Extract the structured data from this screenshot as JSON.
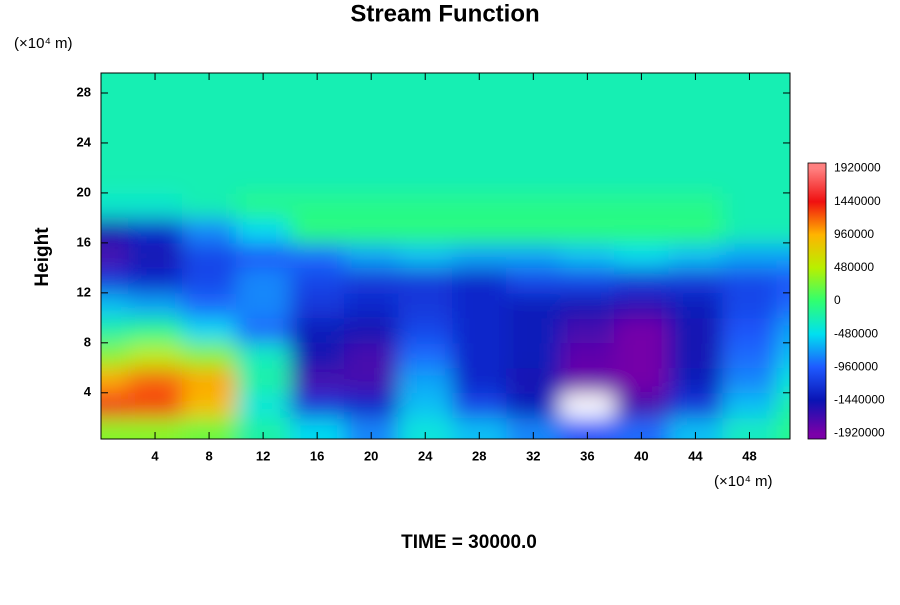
{
  "chart_data": {
    "type": "contour",
    "title": "Stream Function",
    "y_label": "Height",
    "x_unit": "(×10⁴ m)",
    "y_unit": "(×10⁴ m)",
    "footer": "TIME = 30000.0",
    "xlim": [
      0,
      51
    ],
    "ylim": [
      0.3,
      29.6
    ],
    "xticks": [
      4,
      8,
      12,
      16,
      20,
      24,
      28,
      32,
      36,
      40,
      44,
      48
    ],
    "yticks": [
      4,
      8,
      12,
      16,
      20,
      24,
      28
    ],
    "x": [
      0,
      4,
      8,
      12,
      16,
      20,
      24,
      28,
      32,
      36,
      40,
      44,
      48,
      52
    ],
    "y": [
      1,
      3,
      5,
      7,
      9,
      11,
      13,
      15,
      17,
      19,
      21,
      23,
      25,
      27,
      29
    ],
    "z": [
      [
        300000,
        300000,
        200000,
        -200000,
        -500000,
        -800000,
        -400000,
        -600000,
        -800000,
        -1000000,
        -900000,
        -600000,
        -300000,
        -100000
      ],
      [
        1500000,
        1300000,
        900000,
        -400000,
        -1200000,
        -1300000,
        -600000,
        -1100000,
        -1400000,
        -2000000,
        -1700000,
        -1200000,
        -600000,
        -200000
      ],
      [
        1000000,
        1200000,
        1000000,
        -200000,
        -1700000,
        -1700000,
        -700000,
        -1300000,
        -1500000,
        -1850000,
        -1900000,
        -1400000,
        -800000,
        -400000
      ],
      [
        300000,
        500000,
        300000,
        -300000,
        -1500000,
        -1700000,
        -900000,
        -1300000,
        -1400000,
        -1800000,
        -1900000,
        -1500000,
        -900000,
        -600000
      ],
      [
        -200000,
        -100000,
        -500000,
        -900000,
        -1400000,
        -1500000,
        -1100000,
        -1300000,
        -1400000,
        -1700000,
        -1900000,
        -1500000,
        -1000000,
        -700000
      ],
      [
        -600000,
        -700000,
        -900000,
        -800000,
        -1200000,
        -1300000,
        -1200000,
        -1300000,
        -1400000,
        -1500000,
        -1600000,
        -1400000,
        -1100000,
        -900000
      ],
      [
        -1200000,
        -1300000,
        -1100000,
        -800000,
        -1100000,
        -1200000,
        -1200000,
        -1300000,
        -1100000,
        -1100000,
        -1200000,
        -1200000,
        -1100000,
        -1000000
      ],
      [
        -1700000,
        -1500000,
        -1100000,
        -1000000,
        -900000,
        -700000,
        -600000,
        -700000,
        -700000,
        -600000,
        -500000,
        -600000,
        -700000,
        -700000
      ],
      [
        -1500000,
        -1300000,
        -800000,
        -500000,
        -50000,
        -50000,
        -50000,
        -50000,
        -50000,
        -50000,
        -50000,
        -50000,
        -250000,
        -250000
      ],
      [
        -350000,
        -350000,
        -250000,
        -100000,
        -100000,
        -100000,
        -100000,
        -100000,
        -100000,
        -100000,
        -100000,
        -100000,
        -250000,
        -250000
      ],
      [
        -250000,
        -250000,
        -250000,
        -250000,
        -250000,
        -250000,
        -250000,
        -250000,
        -250000,
        -250000,
        -250000,
        -250000,
        -250000,
        -250000
      ],
      [
        -250000,
        -250000,
        -250000,
        -250000,
        -250000,
        -250000,
        -250000,
        -250000,
        -250000,
        -250000,
        -250000,
        -250000,
        -250000,
        -250000
      ],
      [
        -250000,
        -250000,
        -250000,
        -250000,
        -250000,
        -250000,
        -250000,
        -250000,
        -250000,
        -250000,
        -250000,
        -250000,
        -250000,
        -250000
      ],
      [
        -250000,
        -250000,
        -250000,
        -250000,
        -250000,
        -250000,
        -250000,
        -250000,
        -250000,
        -250000,
        -250000,
        -250000,
        -250000,
        -250000
      ],
      [
        -250000,
        -250000,
        -250000,
        -250000,
        -250000,
        -250000,
        -250000,
        -250000,
        -250000,
        -250000,
        -250000,
        -250000,
        -250000,
        -250000
      ]
    ],
    "zlim": [
      -2000000,
      2000000
    ],
    "zticks": [
      -1920000,
      -1440000,
      -960000,
      -480000,
      0,
      480000,
      960000,
      1440000,
      1920000
    ],
    "colors": [
      "#7a00a8",
      "#0a14b4",
      "#1e5aff",
      "#00e0f0",
      "#30ff70",
      "#b8f000",
      "#ffb400",
      "#f01010",
      "#ff8080"
    ],
    "below_color": "#ffffff"
  }
}
